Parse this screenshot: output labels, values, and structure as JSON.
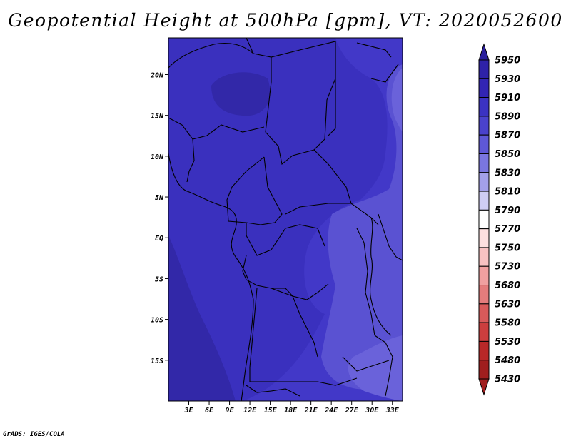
{
  "title": "Geopotential Height at 500hPa [gpm], VT: 2020052600",
  "credit": "GrADS: IGES/COLA",
  "map": {
    "lon_range": [
      0,
      34.5
    ],
    "lat_range": [
      -20,
      24.5
    ],
    "lon_ticks": [
      {
        "value": 3,
        "label": "3E"
      },
      {
        "value": 6,
        "label": "6E"
      },
      {
        "value": 9,
        "label": "9E"
      },
      {
        "value": 12,
        "label": "12E"
      },
      {
        "value": 15,
        "label": "15E"
      },
      {
        "value": 18,
        "label": "18E"
      },
      {
        "value": 21,
        "label": "21E"
      },
      {
        "value": 24,
        "label": "24E"
      },
      {
        "value": 27,
        "label": "27E"
      },
      {
        "value": 30,
        "label": "30E"
      },
      {
        "value": 33,
        "label": "33E"
      }
    ],
    "lat_ticks": [
      {
        "value": 20,
        "label": "20N"
      },
      {
        "value": 15,
        "label": "15N"
      },
      {
        "value": 10,
        "label": "10N"
      },
      {
        "value": 5,
        "label": "5N"
      },
      {
        "value": 0,
        "label": "EQ"
      },
      {
        "value": -5,
        "label": "5S"
      },
      {
        "value": -10,
        "label": "10S"
      },
      {
        "value": -15,
        "label": "15S"
      }
    ]
  },
  "colorbar": {
    "levels": [
      "5950",
      "5930",
      "5910",
      "5890",
      "5870",
      "5850",
      "5830",
      "5810",
      "5790",
      "5770",
      "5750",
      "5730",
      "5680",
      "5630",
      "5580",
      "5530",
      "5480",
      "5430"
    ],
    "colors": [
      "#2a1f9c",
      "#2e22a8",
      "#3225b4",
      "#3b32c2",
      "#4a42cc",
      "#5e58d6",
      "#7a76e0",
      "#a3a0ea",
      "#cfcdf4",
      "#ffffff",
      "#fde0e0",
      "#f8c2c2",
      "#f0a0a0",
      "#e47c7c",
      "#d85a5a",
      "#cc3e3e",
      "#b82828",
      "#a01e1e"
    ]
  },
  "field_colors": {
    "c5930": "#3228a8",
    "c5910": "#3a30be",
    "c5890": "#4238c8",
    "c5870": "#5a52d2",
    "c5850": "#6a62da",
    "c5830": "#7a72e2"
  }
}
